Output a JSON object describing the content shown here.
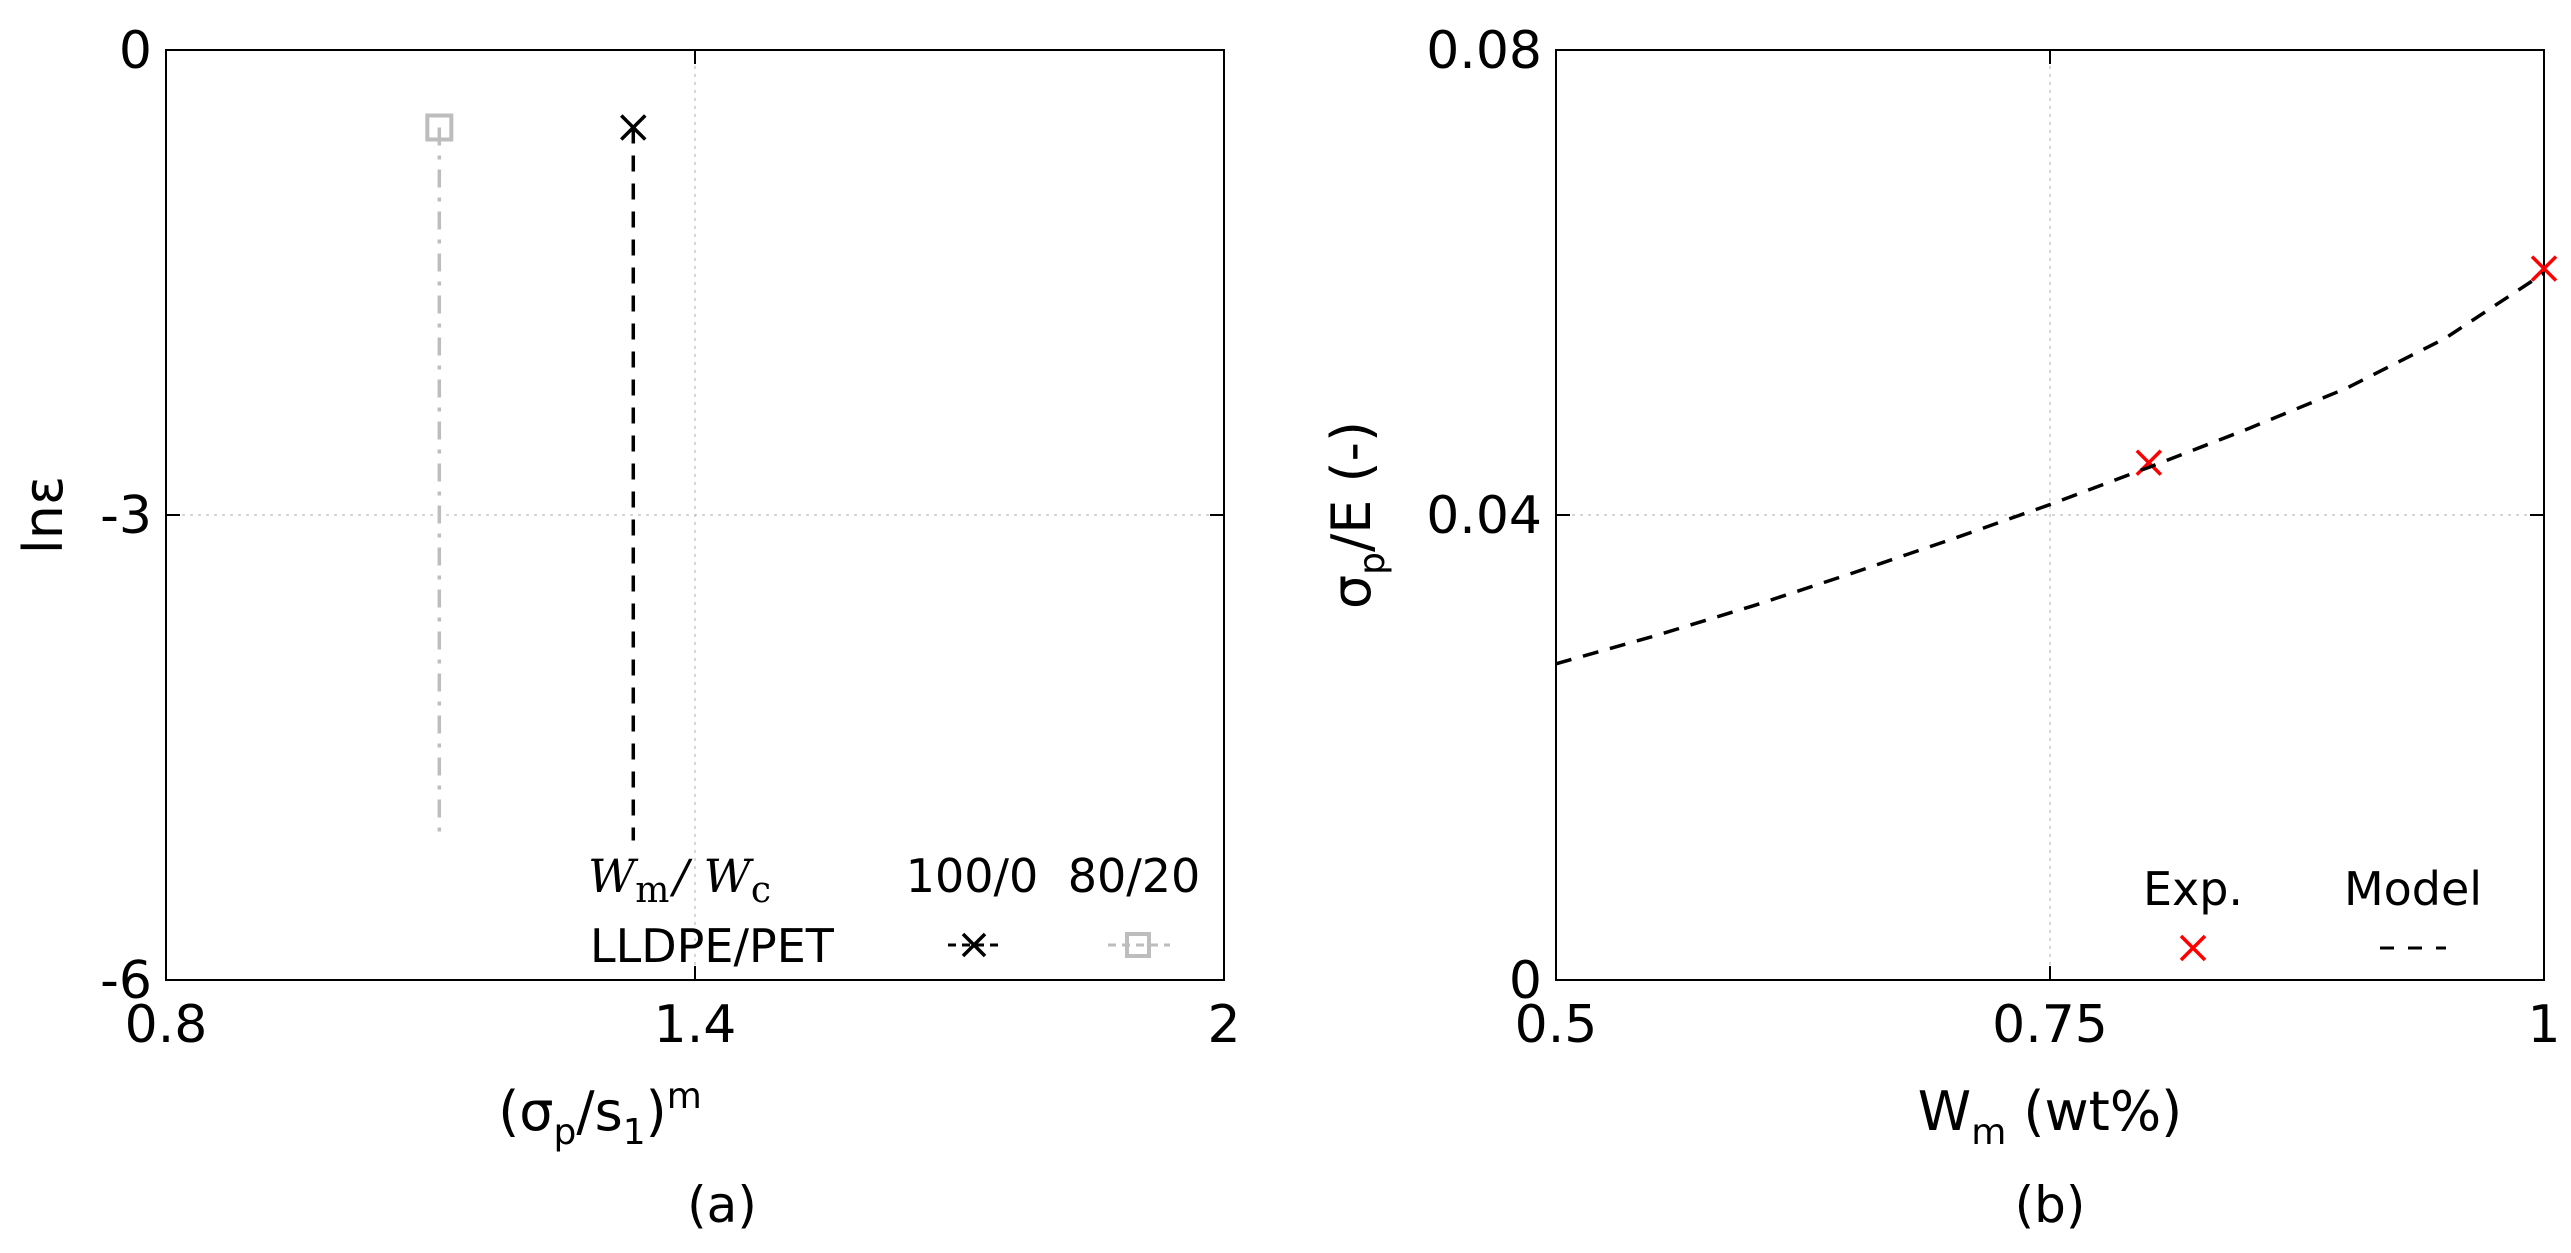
{
  "chart_data": [
    {
      "type": "line",
      "panel": "(a)",
      "xlabel": {
        "main": "(σ",
        "sub": "p",
        "mid": "/s",
        "sub2": "1",
        "end": ")",
        "sup": "m"
      },
      "ylabel": "lnε",
      "xlim": [
        0.8,
        2
      ],
      "ylim": [
        -6,
        0
      ],
      "x_ticks": [
        "0.8",
        "1.4",
        "2"
      ],
      "y_ticks": [
        "0",
        "-3",
        "-6"
      ],
      "grid": true,
      "legend": {
        "position": "bottom-right",
        "header_left": {
          "w1": "W",
          "s1": "m",
          "slash": "/ ",
          "w2": "W",
          "s2": "c"
        },
        "row_label": "LLDPE/PET",
        "entries": [
          "100/0",
          "80/20"
        ]
      },
      "series": [
        {
          "name": "100/0",
          "color": "#000000",
          "marker": "cross",
          "line": "dashed",
          "x": [
            1.33,
            1.33
          ],
          "y": [
            -0.5,
            -5.1
          ]
        },
        {
          "name": "80/20",
          "color": "#bdbdbd",
          "marker": "square",
          "line": "dashdot",
          "x": [
            1.11,
            1.11
          ],
          "y": [
            -0.5,
            -5.1
          ]
        }
      ]
    },
    {
      "type": "line",
      "panel": "(b)",
      "xlabel": {
        "main": "W",
        "sub": "m",
        "end": " (wt%)"
      },
      "ylabel": {
        "main": "σ",
        "sub": "p",
        "end": "/E (-)"
      },
      "xlim": [
        0.5,
        1
      ],
      "ylim": [
        0,
        0.08
      ],
      "x_ticks": [
        "0.5",
        "0.75",
        "1"
      ],
      "y_ticks": [
        "0",
        "0.04",
        "0.08"
      ],
      "grid": true,
      "legend": {
        "position": "bottom-right",
        "entries": [
          "Exp.",
          "Model"
        ]
      },
      "series": [
        {
          "name": "Exp.",
          "color": "#ff0000",
          "marker": "cross",
          "x": [
            0.8,
            1.0
          ],
          "y": [
            0.0445,
            0.0612
          ]
        },
        {
          "name": "Model",
          "color": "#000000",
          "line": "dashed",
          "x": [
            0.5,
            0.55,
            0.6,
            0.65,
            0.7,
            0.75,
            0.8,
            0.85,
            0.9,
            0.95,
            1.0
          ],
          "y": [
            0.0272,
            0.0296,
            0.0322,
            0.035,
            0.0379,
            0.0409,
            0.0441,
            0.0474,
            0.0509,
            0.0552,
            0.0608
          ]
        }
      ]
    }
  ]
}
